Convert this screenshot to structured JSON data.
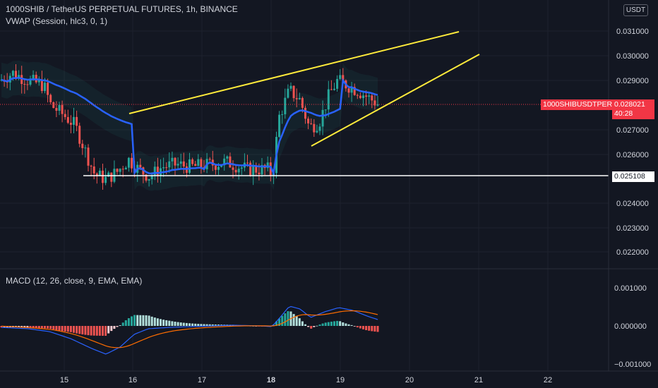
{
  "header": {
    "symbol_title": "1000SHIB / TetherUS PERPETUAL FUTURES, 1h, BINANCE",
    "indicator_vwap": "VWAP (Session, hlc3, 0, 1)",
    "indicator_macd": "MACD (12, 26, close, 9, EMA, EMA)"
  },
  "price_axis": {
    "currency": "USDT",
    "ticks": [
      "0.031000",
      "0.030000",
      "0.029000",
      "0.027000",
      "0.026000",
      "0.024000",
      "0.023000",
      "0.022000"
    ]
  },
  "macd_axis": {
    "ticks": [
      "0.001000",
      "0.000000",
      "−0.001000"
    ]
  },
  "time_axis": {
    "ticks": [
      {
        "label": "15",
        "bold": false
      },
      {
        "label": "16",
        "bold": false
      },
      {
        "label": "17",
        "bold": false
      },
      {
        "label": "18",
        "bold": true
      },
      {
        "label": "19",
        "bold": false
      },
      {
        "label": "20",
        "bold": false
      },
      {
        "label": "21",
        "bold": false
      },
      {
        "label": "22",
        "bold": false
      }
    ]
  },
  "tags": {
    "symbol": "1000SHIBUSDTPERP",
    "last_price": "0.028021",
    "countdown": "40:28",
    "level": "0.025108"
  },
  "colors": {
    "background": "#131722",
    "up": "#26a69a",
    "down": "#ef5350",
    "vwap": "#2962ff",
    "trendline": "#ffeb3b",
    "macd": "#2962ff",
    "signal": "#ff6d00",
    "level": "#ffffff",
    "last_tag": "#f23645"
  }
}
